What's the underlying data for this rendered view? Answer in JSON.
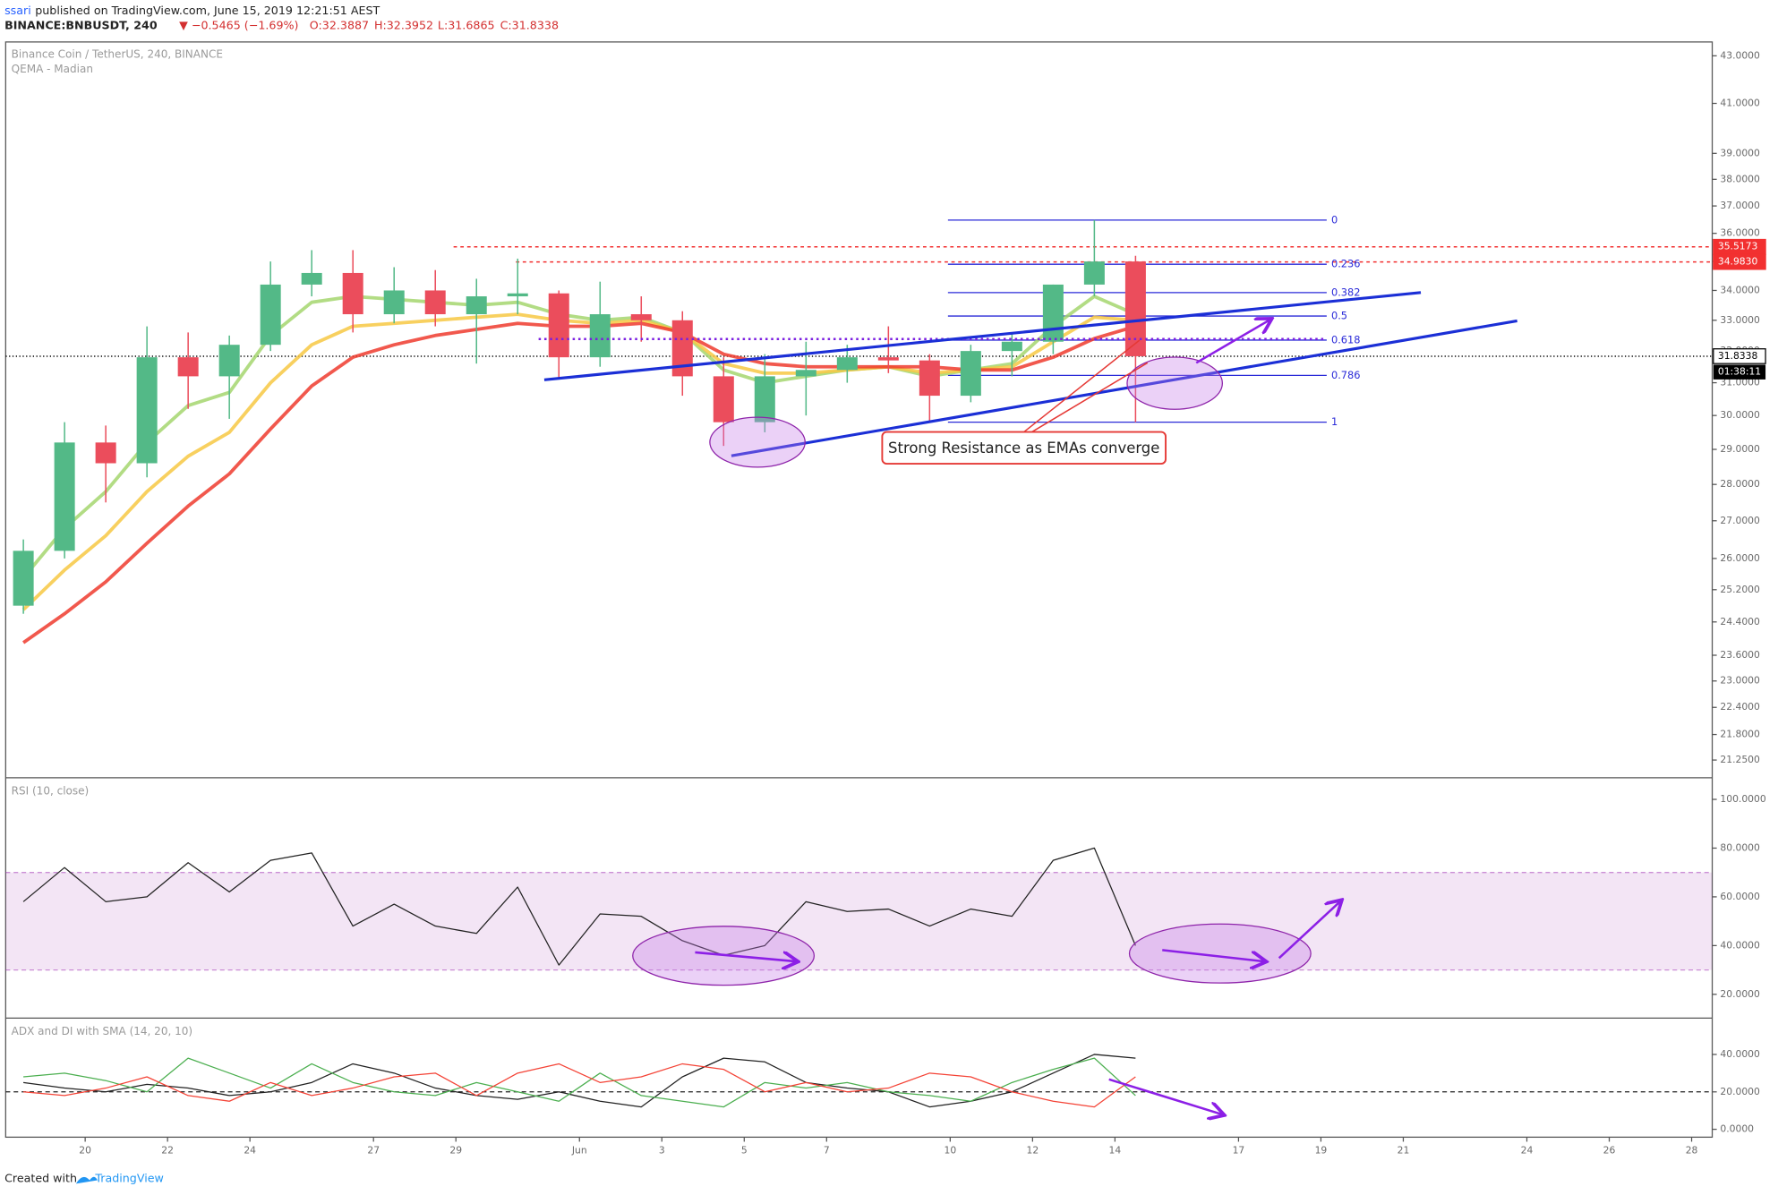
{
  "header": {
    "author": "ssari",
    "published": "published on TradingView.com, June 15, 2019 12:21:51 AEST",
    "symbol": "BINANCE:BNBUSDT, 240",
    "change": "▼ −0.5465 (−1.69%)",
    "open": "O:32.3887",
    "high": "H:32.3952",
    "low": "L:31.6865",
    "close": "C:31.8338"
  },
  "annotation": "Strong Resistance as EMAs converge",
  "footer": {
    "created": "Created with",
    "brand": "TradingView"
  },
  "chart_data": [
    {
      "type": "candlestick",
      "title": "Binance Coin / TetherUS, 240, BINANCE",
      "subtitle": "QEMA - Madian",
      "x": [
        18.5,
        19.5,
        20.5,
        21.5,
        22.5,
        23.5,
        24.5,
        25.5,
        26.5,
        27.5,
        28.5,
        29.5,
        30.5,
        31.5,
        32.5,
        33.5,
        34.5,
        35.5,
        36.5,
        37.5,
        38.5,
        39.5,
        40.5,
        41.5,
        42.5,
        43.5,
        44.5,
        45.5
      ],
      "open": [
        24.8,
        26.2,
        29.2,
        28.6,
        31.8,
        31.2,
        32.2,
        34.2,
        34.6,
        33.2,
        34,
        33.2,
        33.8,
        33.9,
        31.8,
        33.2,
        33,
        31.2,
        29.8,
        31.2,
        31.4,
        31.8,
        31.7,
        30.6,
        32,
        32.3,
        34.2,
        35
      ],
      "high": [
        26.5,
        29.8,
        29.7,
        32.8,
        32.6,
        32.5,
        35,
        35.4,
        35.4,
        34.8,
        34.7,
        34.4,
        35.1,
        34,
        34.3,
        33.8,
        33.3,
        31.8,
        31.9,
        32.3,
        32.2,
        32.8,
        31.9,
        32.2,
        32.6,
        34.2,
        36.48,
        35.2
      ],
      "low": [
        24.6,
        26,
        27.5,
        28.2,
        30.2,
        29.9,
        32,
        33.8,
        32.6,
        32.9,
        32.8,
        31.6,
        33.2,
        31.1,
        31.5,
        32.3,
        30.6,
        29.1,
        29.5,
        30,
        31,
        31.3,
        29.8,
        30.4,
        31.2,
        31.9,
        33.8,
        29.8
      ],
      "close": [
        26.2,
        29.2,
        28.6,
        31.8,
        31.2,
        32.2,
        34.2,
        34.6,
        33.2,
        34,
        33.2,
        33.8,
        33.9,
        31.8,
        33.2,
        33,
        31.2,
        29.8,
        31.2,
        31.4,
        31.8,
        31.7,
        30.6,
        32,
        32.3,
        34.2,
        35,
        31.8338
      ],
      "up_color": "#53b987",
      "down_color": "#eb4d5c",
      "series": [
        {
          "color": "#a5d66f",
          "values": [
            25.5,
            26.8,
            27.8,
            29.2,
            30.3,
            30.7,
            32.5,
            33.6,
            33.8,
            33.7,
            33.6,
            33.5,
            33.6,
            33.2,
            33,
            33.1,
            32.6,
            31.4,
            31,
            31.2,
            31.4,
            31.5,
            31.2,
            31.4,
            31.6,
            32.8,
            33.8,
            33.2
          ]
        },
        {
          "color": "#f7c843",
          "values": [
            24.7,
            25.7,
            26.6,
            27.8,
            28.8,
            29.5,
            31,
            32.2,
            32.8,
            32.9,
            33,
            33.1,
            33.2,
            33,
            32.9,
            33,
            32.6,
            31.6,
            31.3,
            31.3,
            31.4,
            31.5,
            31.3,
            31.4,
            31.5,
            32.3,
            33.1,
            33
          ]
        },
        {
          "color": "#ee3b2e",
          "values": [
            23.9,
            24.6,
            25.4,
            26.4,
            27.4,
            28.3,
            29.6,
            30.9,
            31.8,
            32.2,
            32.5,
            32.7,
            32.9,
            32.8,
            32.8,
            32.9,
            32.6,
            31.9,
            31.6,
            31.5,
            31.5,
            31.5,
            31.5,
            31.4,
            31.4,
            31.8,
            32.4,
            32.8
          ]
        }
      ],
      "log_scale": true,
      "xlim": [
        18.07,
        59.5
      ],
      "ylim": [
        20.9,
        43.6
      ],
      "yticks": [
        {
          "value": 43,
          "label": "43.0000"
        },
        {
          "value": 41,
          "label": "41.0000"
        },
        {
          "value": 39,
          "label": "39.0000"
        },
        {
          "value": 38,
          "label": "38.0000"
        },
        {
          "value": 37,
          "label": "37.0000"
        },
        {
          "value": 36,
          "label": "36.0000"
        },
        {
          "value": 35,
          "label": "35.0000"
        },
        {
          "value": 34,
          "label": "34.0000"
        },
        {
          "value": 33,
          "label": "33.0000"
        },
        {
          "value": 32,
          "label": "32.0000"
        },
        {
          "value": 31,
          "label": "31.0000"
        },
        {
          "value": 30,
          "label": "30.0000"
        },
        {
          "value": 29,
          "label": "29.0000"
        },
        {
          "value": 28,
          "label": "28.0000"
        },
        {
          "value": 27,
          "label": "27.0000"
        },
        {
          "value": 26,
          "label": "26.0000"
        },
        {
          "value": 25.2,
          "label": "25.2000"
        },
        {
          "value": 24.4,
          "label": "24.4000"
        },
        {
          "value": 23.6,
          "label": "23.6000"
        },
        {
          "value": 23,
          "label": "23.0000"
        },
        {
          "value": 22.4,
          "label": "22.4000"
        },
        {
          "value": 21.8,
          "label": "21.8000"
        },
        {
          "value": 21.25,
          "label": "21.2500"
        }
      ],
      "fib": {
        "high": 36.48,
        "low": 29.8,
        "levels": [
          0,
          0.236,
          0.382,
          0.5,
          0.618,
          0.786,
          1
        ],
        "color": "#2a2ad8"
      },
      "price_lines": [
        {
          "value": 35.5173,
          "color": "#f23030"
        },
        {
          "value": 34.983,
          "label": "34.9830",
          "color": "#f23030"
        },
        {
          "value": 31.8338,
          "color": "#000000"
        }
      ],
      "timer": "01:38:11"
    },
    {
      "type": "line",
      "title": "RSI (10, close)",
      "x": [
        18.5,
        19.5,
        20.5,
        21.5,
        22.5,
        23.5,
        24.5,
        25.5,
        26.5,
        27.5,
        28.5,
        29.5,
        30.5,
        31.5,
        32.5,
        33.5,
        34.5,
        35.5,
        36.5,
        37.5,
        38.5,
        39.5,
        40.5,
        41.5,
        42.5,
        43.5,
        44.5,
        45.5
      ],
      "series": [
        {
          "color": "#222222",
          "values": [
            58,
            72,
            58,
            60,
            74,
            62,
            75,
            78,
            48,
            57,
            48,
            45,
            64,
            32,
            53,
            52,
            42,
            36,
            40,
            58,
            54,
            55,
            48,
            55,
            52,
            75,
            80,
            40
          ]
        }
      ],
      "band": [
        30,
        70
      ],
      "band_color": "#9c27b0",
      "log_scale": false,
      "xlim": [
        18.07,
        59.5
      ],
      "ylim": [
        10.7,
        108.4
      ],
      "yticks": [
        {
          "value": 100,
          "label": "100.0000"
        },
        {
          "value": 80,
          "label": "80.0000"
        },
        {
          "value": 60,
          "label": "60.0000"
        },
        {
          "value": 40,
          "label": "40.0000"
        },
        {
          "value": 20,
          "label": "20.0000"
        }
      ]
    },
    {
      "type": "line",
      "title": "ADX and DI with SMA (14, 20, 10)",
      "x": [
        18.5,
        19.5,
        20.5,
        21.5,
        22.5,
        23.5,
        24.5,
        25.5,
        26.5,
        27.5,
        28.5,
        29.5,
        30.5,
        31.5,
        32.5,
        33.5,
        34.5,
        35.5,
        36.5,
        37.5,
        38.5,
        39.5,
        40.5,
        41.5,
        42.5,
        43.5,
        44.5,
        45.5
      ],
      "series": [
        {
          "color": "#222222",
          "values": [
            25,
            22,
            20,
            24,
            22,
            18,
            20,
            25,
            35,
            30,
            22,
            18,
            16,
            20,
            15,
            12,
            28,
            38,
            36,
            25,
            22,
            20,
            12,
            15,
            20,
            30,
            40,
            38
          ]
        },
        {
          "color": "#4caf50",
          "values": [
            28,
            30,
            26,
            20,
            38,
            30,
            22,
            35,
            25,
            20,
            18,
            25,
            20,
            15,
            30,
            18,
            15,
            12,
            25,
            22,
            25,
            20,
            18,
            15,
            25,
            32,
            38,
            18
          ]
        },
        {
          "color": "#f44336",
          "values": [
            20,
            18,
            22,
            28,
            18,
            15,
            25,
            18,
            22,
            28,
            30,
            18,
            30,
            35,
            25,
            28,
            35,
            32,
            20,
            25,
            20,
            22,
            30,
            28,
            20,
            15,
            12,
            28
          ]
        }
      ],
      "level": 20,
      "log_scale": false,
      "xlim": [
        18.07,
        59.5
      ],
      "ylim": [
        -3.6,
        58.8
      ],
      "yticks": [
        {
          "value": 40,
          "label": "40.0000"
        },
        {
          "value": 20,
          "label": "20.0000"
        },
        {
          "value": 0,
          "label": "0.0000"
        }
      ],
      "xticks": [
        20,
        22,
        24,
        27,
        29,
        {
          "value": 32,
          "label": "Jun"
        },
        {
          "value": 34,
          "label": "3"
        },
        {
          "value": 36,
          "label": "5"
        },
        {
          "value": 38,
          "label": "7"
        },
        {
          "value": 41,
          "label": "10"
        },
        {
          "value": 43,
          "label": "12"
        },
        {
          "value": 45,
          "label": "14"
        },
        {
          "value": 48,
          "label": "17"
        },
        {
          "value": 50,
          "label": "19"
        },
        {
          "value": 52,
          "label": "21"
        },
        {
          "value": 55,
          "label": "24"
        },
        {
          "value": 57,
          "label": "26"
        },
        {
          "value": 59,
          "label": "28"
        }
      ]
    }
  ]
}
